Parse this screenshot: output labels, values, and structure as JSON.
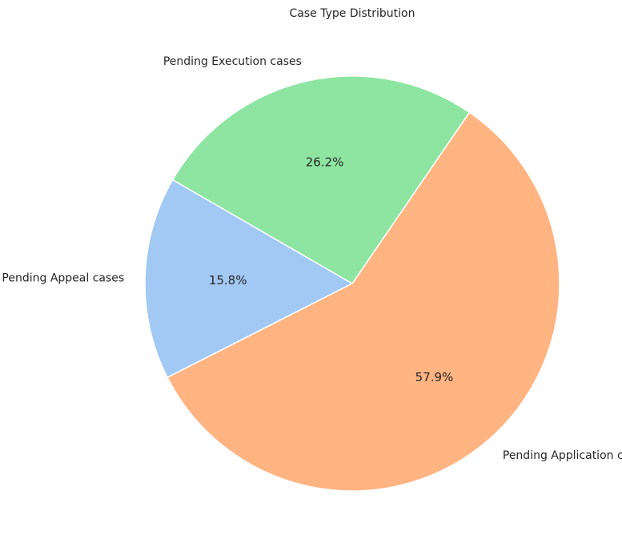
{
  "chart_data": {
    "type": "pie",
    "title": "Case Type Distribution",
    "start_angle_deg": 150,
    "direction": "counterclockwise",
    "slices": [
      {
        "label": "Pending Appeal cases",
        "percent": 15.8,
        "percent_label": "15.8%",
        "color": "#a1c9f4"
      },
      {
        "label": "Pending Application cases",
        "percent": 57.9,
        "percent_label": "57.9%",
        "color": "#ffb482"
      },
      {
        "label": "Pending Execution cases",
        "percent": 26.2,
        "percent_label": "26.2%",
        "color": "#8de5a1"
      }
    ]
  }
}
